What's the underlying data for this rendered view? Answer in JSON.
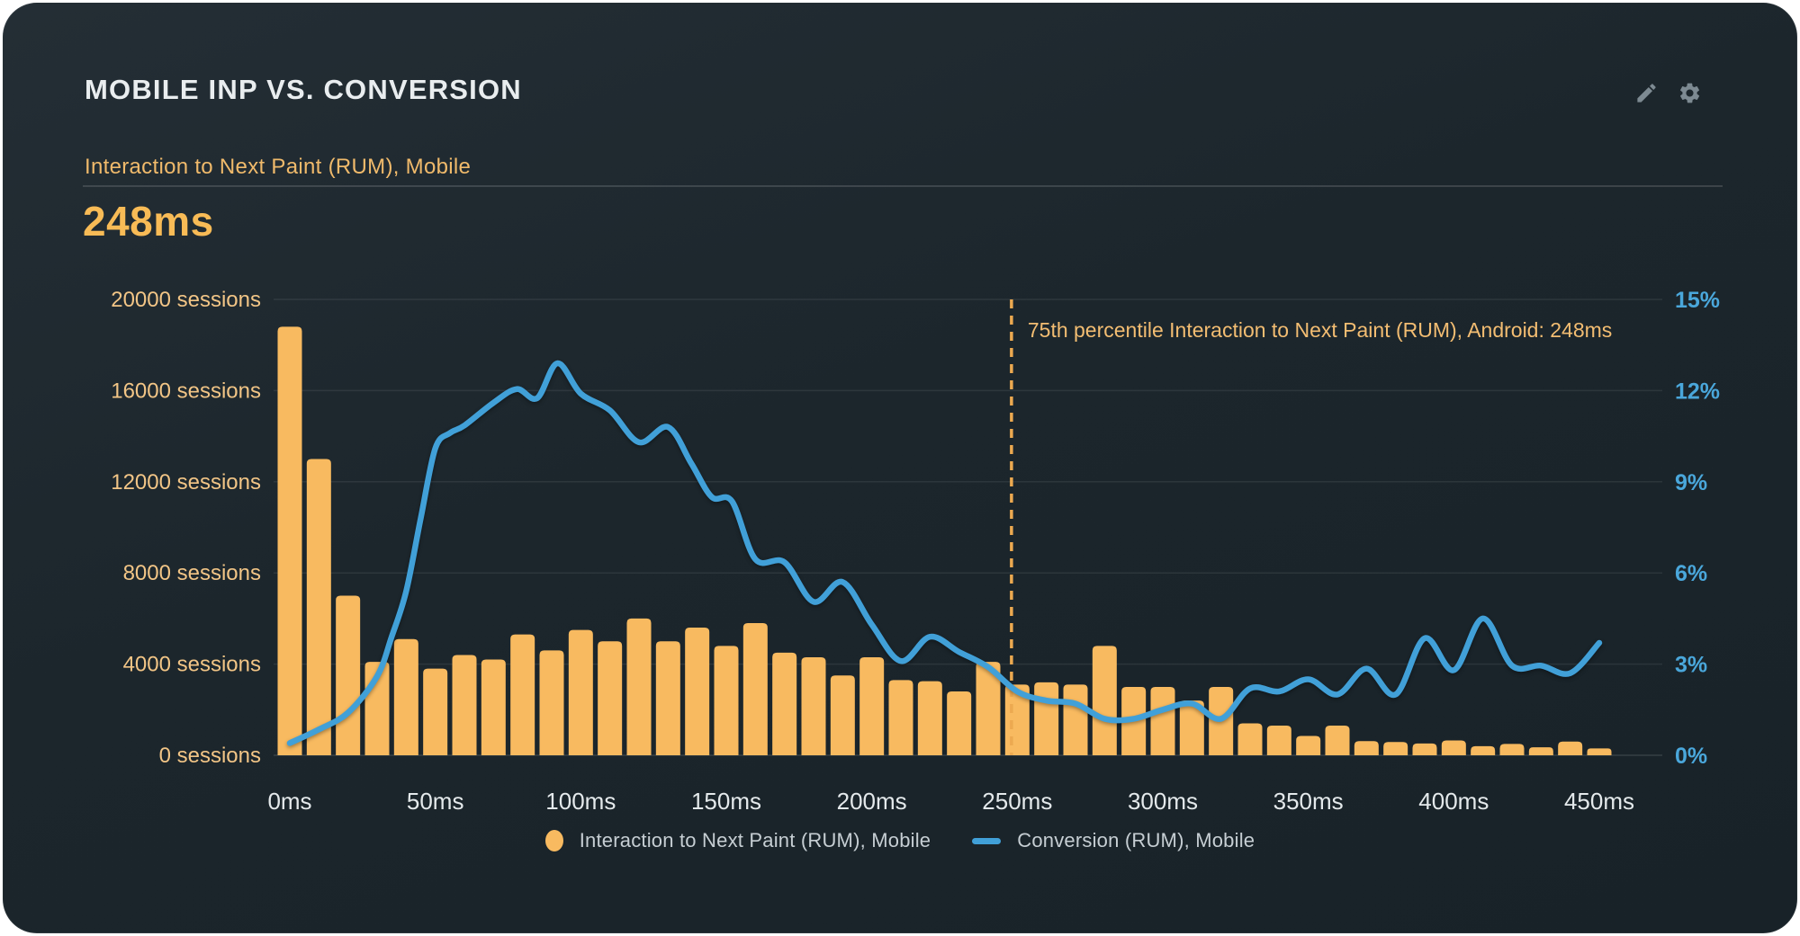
{
  "header": {
    "title": "MOBILE INP VS. CONVERSION",
    "icons": [
      "pencil-icon",
      "gear-icon"
    ]
  },
  "metric": {
    "label": "Interaction to Next Paint (RUM), Mobile",
    "value": "248ms"
  },
  "colors": {
    "bar": "#f8ba60",
    "line": "#41a0d8",
    "left_axis_text": "#f2c586",
    "right_axis_text": "#4aa7db",
    "x_axis_text": "#e4e9eb",
    "annotation": "#f3bd72",
    "annotation_line": "#eca950",
    "grid": "rgba(255,255,255,0.08)"
  },
  "chart_data": {
    "type": "histogram+line",
    "x_unit": "ms",
    "bin_width_ms": 10,
    "x_tick_ms": [
      0,
      50,
      100,
      150,
      200,
      250,
      300,
      350,
      400,
      450
    ],
    "x_tick_labels": [
      "0ms",
      "50ms",
      "100ms",
      "150ms",
      "200ms",
      "250ms",
      "300ms",
      "350ms",
      "400ms",
      "450ms"
    ],
    "y_left": {
      "tick_labels": [
        "20000 sessions",
        "16000 sessions",
        "12000 sessions",
        "8000 sessions",
        "4000 sessions",
        "0 sessions"
      ],
      "tick_values": [
        20000,
        16000,
        12000,
        8000,
        4000,
        0
      ],
      "range": [
        0,
        20000
      ]
    },
    "y_right": {
      "tick_labels": [
        "15%",
        "12%",
        "9%",
        "6%",
        "3%",
        "0%"
      ],
      "tick_values": [
        15,
        12,
        9,
        6,
        3,
        0
      ],
      "range": [
        0,
        15
      ]
    },
    "series": [
      {
        "name": "Interaction to Next Paint (RUM), Mobile",
        "type": "bar",
        "axis": "left",
        "color": "#f8ba60",
        "bins_ms": [
          0,
          10,
          20,
          30,
          40,
          50,
          60,
          70,
          80,
          90,
          100,
          110,
          120,
          130,
          140,
          150,
          160,
          170,
          180,
          190,
          200,
          210,
          220,
          230,
          240,
          250,
          260,
          270,
          280,
          290,
          300,
          310,
          320,
          330,
          340,
          350,
          360,
          370,
          380,
          390,
          400,
          410,
          420,
          430,
          440,
          450
        ],
        "sessions": [
          18800,
          13000,
          7000,
          4100,
          5100,
          3800,
          4400,
          4200,
          5300,
          4600,
          5500,
          5000,
          6000,
          5000,
          5600,
          4800,
          5800,
          4500,
          4300,
          3500,
          4300,
          3300,
          3250,
          2800,
          4100,
          3100,
          3200,
          3100,
          4800,
          3000,
          3000,
          2400,
          3000,
          1400,
          1300,
          850,
          1300,
          620,
          580,
          520,
          650,
          400,
          500,
          350,
          600,
          300
        ]
      },
      {
        "name": "Conversion (RUM), Mobile",
        "type": "line",
        "axis": "right",
        "color": "#41a0d8",
        "points_ms_pct": [
          [
            0,
            0.4
          ],
          [
            10,
            0.85
          ],
          [
            20,
            1.4
          ],
          [
            30,
            2.6
          ],
          [
            35,
            3.9
          ],
          [
            40,
            5.4
          ],
          [
            45,
            7.8
          ],
          [
            50,
            10.1
          ],
          [
            55,
            10.6
          ],
          [
            60,
            10.85
          ],
          [
            70,
            11.6
          ],
          [
            78,
            12.05
          ],
          [
            85,
            11.75
          ],
          [
            92,
            12.9
          ],
          [
            100,
            11.9
          ],
          [
            110,
            11.35
          ],
          [
            120,
            10.3
          ],
          [
            130,
            10.8
          ],
          [
            138,
            9.6
          ],
          [
            145,
            8.5
          ],
          [
            152,
            8.35
          ],
          [
            160,
            6.45
          ],
          [
            170,
            6.35
          ],
          [
            180,
            5.05
          ],
          [
            190,
            5.7
          ],
          [
            200,
            4.3
          ],
          [
            210,
            3.1
          ],
          [
            220,
            3.9
          ],
          [
            230,
            3.4
          ],
          [
            240,
            2.9
          ],
          [
            250,
            2.1
          ],
          [
            260,
            1.8
          ],
          [
            270,
            1.7
          ],
          [
            280,
            1.2
          ],
          [
            290,
            1.2
          ],
          [
            300,
            1.5
          ],
          [
            310,
            1.7
          ],
          [
            320,
            1.2
          ],
          [
            330,
            2.2
          ],
          [
            340,
            2.1
          ],
          [
            350,
            2.5
          ],
          [
            360,
            2.0
          ],
          [
            370,
            2.85
          ],
          [
            380,
            2.0
          ],
          [
            390,
            3.85
          ],
          [
            400,
            2.8
          ],
          [
            410,
            4.5
          ],
          [
            420,
            2.95
          ],
          [
            430,
            2.95
          ],
          [
            440,
            2.7
          ],
          [
            450,
            3.7
          ]
        ]
      }
    ],
    "annotation": {
      "text": "75th percentile Interaction to Next Paint (RUM), Android: 248ms",
      "line_ms": 248
    },
    "grid": true,
    "legend_position": "bottom-center",
    "legend": [
      {
        "label": "Interaction to Next Paint (RUM), Mobile",
        "marker": "dot",
        "color": "#f8ba60"
      },
      {
        "label": "Conversion (RUM), Mobile",
        "marker": "dash",
        "color": "#41a0d8"
      }
    ]
  }
}
